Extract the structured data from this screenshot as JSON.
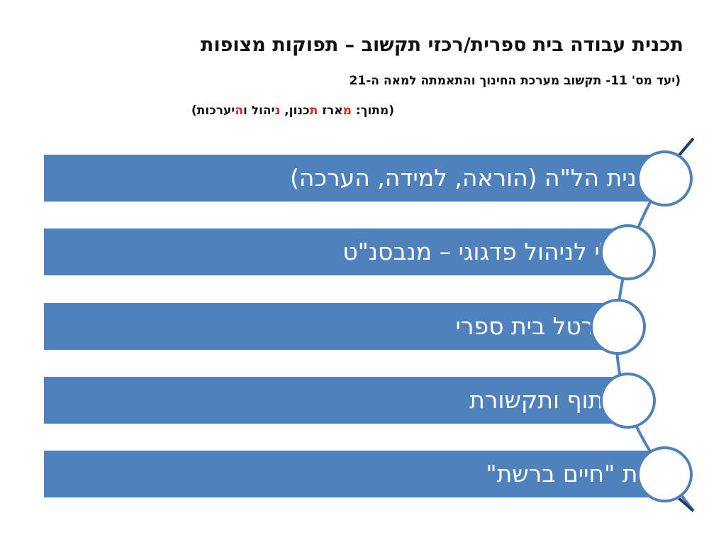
{
  "header": {
    "title": "תכנית עבודה בית ספרית/רכזי תקשוב – תפוקות מצופות",
    "goal_line": "(יעד מס' 11- תקשוב מערכת החינוך והתאמתה למאה  ה-21",
    "source_open": "(מתוך: ",
    "source_m": "מ",
    "source_w1": "ארז ",
    "source_t": "ת",
    "source_w2": "כנון, ",
    "source_n": "נ",
    "source_w3": "יהול ו",
    "source_h": "ה",
    "source_w4": "יערכות)"
  },
  "items": [
    {
      "label": "תכנית הל\"ה (הוראה, למידה, הערכה)"
    },
    {
      "label": "כלי לניהול פדגוגי – מנבסנ\"ט"
    },
    {
      "label": "פורטל בית ספרי"
    },
    {
      "label": "שיתוף ותקשורת"
    },
    {
      "label": "צוות \"חיים ברשת\""
    }
  ],
  "colors": {
    "band": "#4f81bd",
    "highlight": "#e0201b"
  }
}
